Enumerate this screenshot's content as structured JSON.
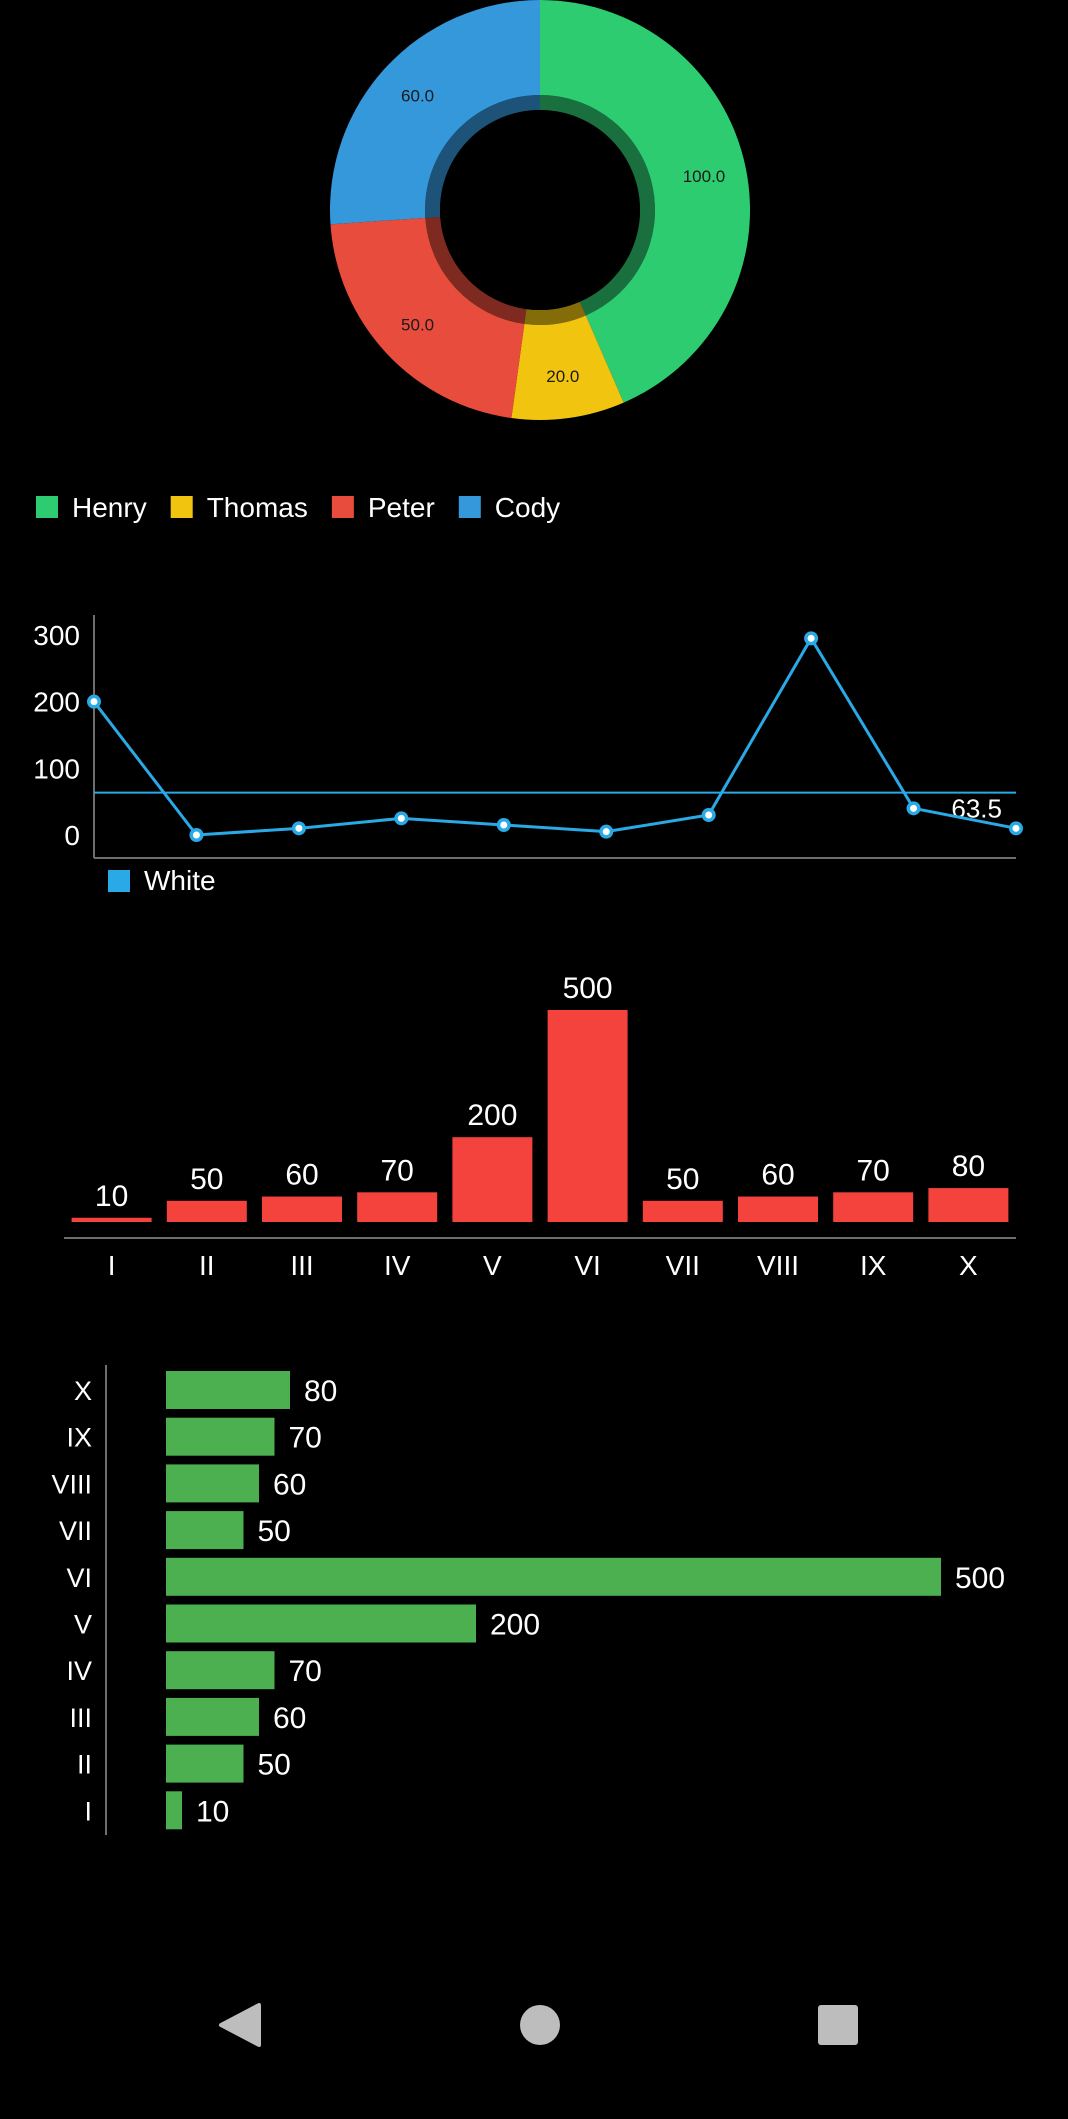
{
  "colors": {
    "background": "#000000",
    "text": "#ffffff",
    "axis": "#6e6e6e",
    "line_series": "#29a9e6",
    "bar_vertical": "#f4433c",
    "bar_horizontal": "#4caf50",
    "nav_icons": "#bdbdbd"
  },
  "chart_data": [
    {
      "type": "pie",
      "variant": "donut",
      "slices": [
        {
          "name": "Henry",
          "value": 100.0,
          "label": "100.0",
          "color": "#2ecc71"
        },
        {
          "name": "Thomas",
          "value": 20.0,
          "label": "20.0",
          "color": "#f1c40f"
        },
        {
          "name": "Peter",
          "value": 50.0,
          "label": "50.0",
          "color": "#e74c3c"
        },
        {
          "name": "Cody",
          "value": 60.0,
          "label": "60.0",
          "color": "#3498db"
        }
      ],
      "legend": {
        "placement": "bottom-left",
        "entries": [
          "Henry",
          "Thomas",
          "Peter",
          "Cody"
        ]
      }
    },
    {
      "type": "line",
      "series": [
        {
          "name": "White",
          "color": "#29a9e6",
          "values": [
            200,
            0,
            10,
            25,
            15,
            5,
            30,
            295,
            40,
            10
          ]
        }
      ],
      "y_ticks": [
        "300",
        "200",
        "100",
        "0"
      ],
      "ylim": [
        0,
        300
      ],
      "limit_line": {
        "value": 63.5,
        "label": "63.5"
      },
      "legend": {
        "placement": "bottom-left",
        "entries": [
          "White"
        ]
      },
      "grid": false
    },
    {
      "type": "bar",
      "orientation": "vertical",
      "categories": [
        "I",
        "II",
        "III",
        "IV",
        "V",
        "VI",
        "VII",
        "VIII",
        "IX",
        "X"
      ],
      "values": [
        10,
        50,
        60,
        70,
        200,
        500,
        50,
        60,
        70,
        80
      ],
      "value_labels": [
        "10",
        "50",
        "60",
        "70",
        "200",
        "500",
        "50",
        "60",
        "70",
        "80"
      ],
      "color": "#f4433c",
      "ylim": [
        0,
        500
      ]
    },
    {
      "type": "bar",
      "orientation": "horizontal",
      "categories": [
        "X",
        "IX",
        "VIII",
        "VII",
        "VI",
        "V",
        "IV",
        "III",
        "II",
        "I"
      ],
      "values": [
        80,
        70,
        60,
        50,
        500,
        200,
        70,
        60,
        50,
        10
      ],
      "value_labels": [
        "80",
        "70",
        "60",
        "50",
        "500",
        "200",
        "70",
        "60",
        "50",
        "10"
      ],
      "color": "#4caf50",
      "xlim": [
        0,
        500
      ]
    }
  ],
  "nav": {
    "back": "back-icon",
    "home": "home-icon",
    "recents": "recents-icon"
  }
}
